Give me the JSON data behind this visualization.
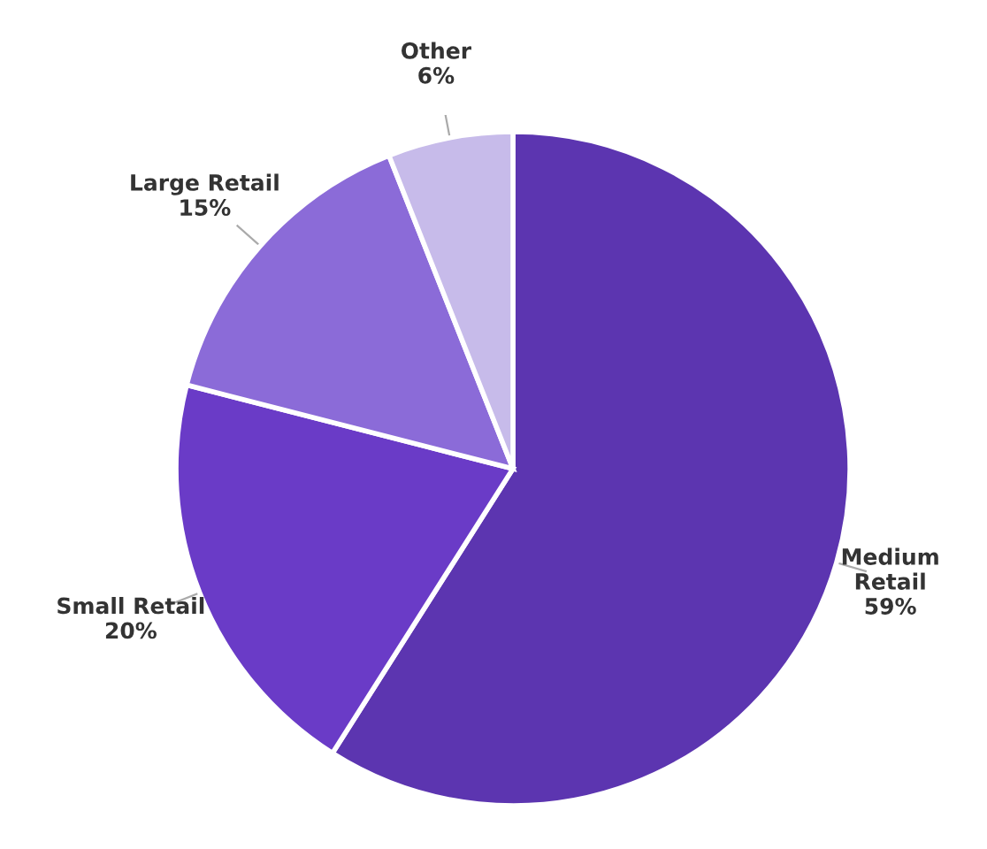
{
  "chart_data": {
    "type": "pie",
    "categories": [
      "Medium\nRetail",
      "Small Retail",
      "Large Retail",
      "Other"
    ],
    "values": [
      59,
      20,
      15,
      6
    ],
    "colors": [
      "#5c35b0",
      "#6a3bc7",
      "#8b6bd8",
      "#c7bbea"
    ],
    "value_labels": [
      "59%",
      "20%",
      "15%",
      "6%"
    ]
  }
}
